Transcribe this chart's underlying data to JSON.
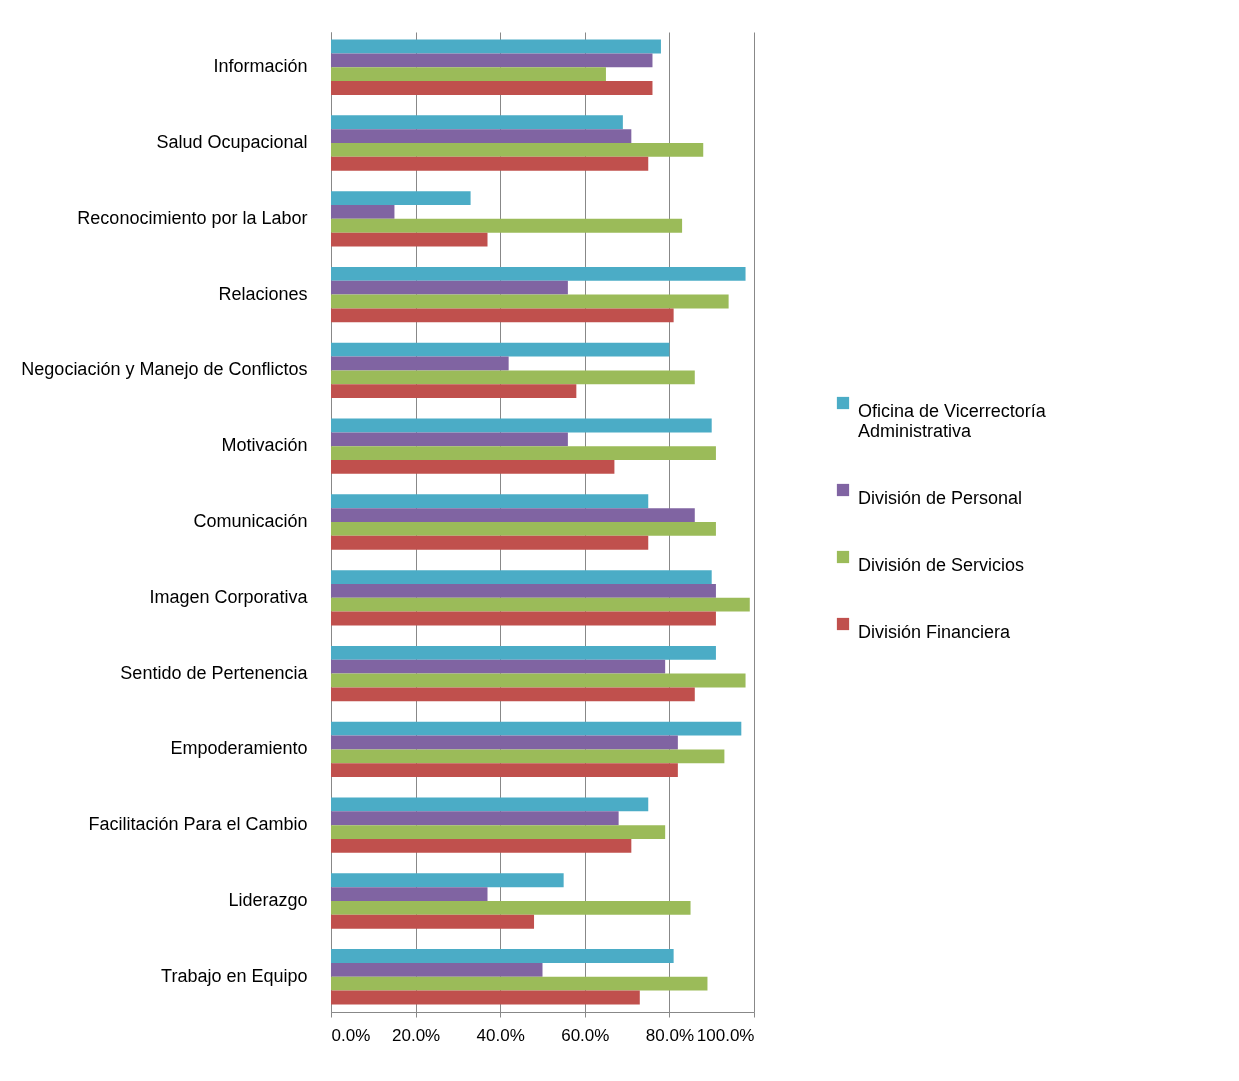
{
  "chart_data": {
    "type": "bar",
    "orientation": "horizontal",
    "categories": [
      "Información",
      "Salud Ocupacional",
      "Reconocimiento por la Labor",
      "Relaciones",
      "Negociación y Manejo de Conflictos",
      "Motivación",
      "Comunicación",
      "Imagen Corporativa",
      "Sentido de Pertenencia",
      "Empoderamiento",
      "Facilitación Para el Cambio",
      "Liderazgo",
      "Trabajo en Equipo"
    ],
    "series": [
      {
        "name": "Oficina de Vicerrectoría Administrativa",
        "color": "#4bacc6",
        "values": [
          78,
          69,
          33,
          98,
          80,
          90,
          75,
          90,
          91,
          97,
          75,
          55,
          81
        ]
      },
      {
        "name": "División de Personal",
        "color": "#8064a2",
        "values": [
          76,
          71,
          15,
          56,
          42,
          56,
          86,
          91,
          79,
          82,
          68,
          37,
          50
        ]
      },
      {
        "name": "División de Servicios",
        "color": "#9bbb59",
        "values": [
          65,
          88,
          83,
          94,
          86,
          91,
          91,
          99,
          98,
          93,
          79,
          85,
          89
        ]
      },
      {
        "name": "División Financiera",
        "color": "#c0504d",
        "values": [
          76,
          75,
          37,
          81,
          58,
          67,
          75,
          91,
          86,
          82,
          71,
          48,
          73
        ]
      }
    ],
    "xlim": [
      0,
      100
    ],
    "xticks": [
      {
        "value": 0,
        "label": "0.0%"
      },
      {
        "value": 20,
        "label": "20.0%"
      },
      {
        "value": 40,
        "label": "40.0%"
      },
      {
        "value": 60,
        "label": "60.0%"
      },
      {
        "value": 80,
        "label": "80.0%"
      },
      {
        "value": 100,
        "label": "100.0%"
      }
    ],
    "grid": "x",
    "legend": "right"
  }
}
